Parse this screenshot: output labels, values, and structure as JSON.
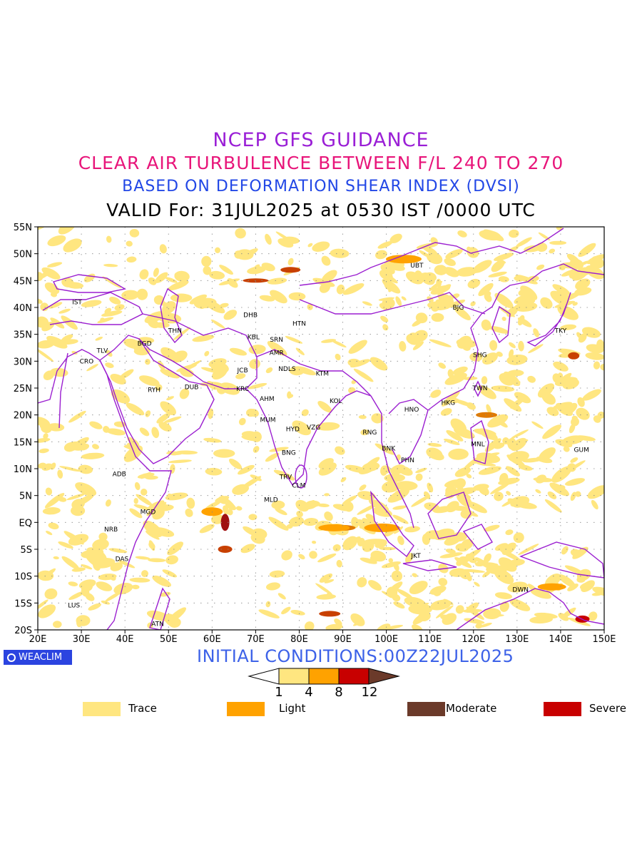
{
  "titles": {
    "line1": "NCEP GFS GUIDANCE",
    "line2": "CLEAR AIR TURBULENCE BETWEEN F/L 240 TO 270",
    "line3": "BASED ON DEFORMATION SHEAR INDEX (DVSI)",
    "line4": "VALID For: 31JUL2025 at 0530 IST /0000 UTC"
  },
  "map": {
    "lon_range": [
      20,
      150
    ],
    "lat_range": [
      -20,
      55
    ],
    "lon_ticks": [
      "20E",
      "30E",
      "40E",
      "50E",
      "60E",
      "70E",
      "80E",
      "90E",
      "100E",
      "110E",
      "120E",
      "130E",
      "140E",
      "150E"
    ],
    "lat_ticks": [
      "55N",
      "50N",
      "45N",
      "40N",
      "35N",
      "30N",
      "25N",
      "20N",
      "15N",
      "10N",
      "5N",
      "EQ",
      "5S",
      "10S",
      "15S",
      "20S"
    ],
    "grid": "dotted",
    "stations": [
      {
        "code": "UBT",
        "lon": 107,
        "lat": 47.8
      },
      {
        "code": "IST",
        "lon": 29,
        "lat": 41
      },
      {
        "code": "BJG",
        "lon": 116.5,
        "lat": 40
      },
      {
        "code": "DHB",
        "lon": 68.8,
        "lat": 38.6
      },
      {
        "code": "HTN",
        "lon": 80,
        "lat": 37
      },
      {
        "code": "THN",
        "lon": 51.5,
        "lat": 35.7
      },
      {
        "code": "KBL",
        "lon": 69.5,
        "lat": 34.5
      },
      {
        "code": "SRN",
        "lon": 74.8,
        "lat": 34
      },
      {
        "code": "TKY",
        "lon": 140,
        "lat": 35.7
      },
      {
        "code": "BGD",
        "lon": 44.5,
        "lat": 33.3
      },
      {
        "code": "TLV",
        "lon": 34.8,
        "lat": 32
      },
      {
        "code": "AMR",
        "lon": 74.8,
        "lat": 31.6
      },
      {
        "code": "SHG",
        "lon": 121.5,
        "lat": 31.2
      },
      {
        "code": "CRO",
        "lon": 31.2,
        "lat": 30
      },
      {
        "code": "JCB",
        "lon": 67,
        "lat": 28.3
      },
      {
        "code": "NDLS",
        "lon": 77.2,
        "lat": 28.6
      },
      {
        "code": "KTM",
        "lon": 85.3,
        "lat": 27.7
      },
      {
        "code": "RYH",
        "lon": 46.7,
        "lat": 24.7
      },
      {
        "code": "DUB",
        "lon": 55.3,
        "lat": 25.2
      },
      {
        "code": "KRC",
        "lon": 67,
        "lat": 24.9
      },
      {
        "code": "TWN",
        "lon": 121.5,
        "lat": 25
      },
      {
        "code": "AHM",
        "lon": 72.6,
        "lat": 23
      },
      {
        "code": "KOL",
        "lon": 88.4,
        "lat": 22.6
      },
      {
        "code": "HKG",
        "lon": 114.2,
        "lat": 22.3
      },
      {
        "code": "HNO",
        "lon": 105.8,
        "lat": 21
      },
      {
        "code": "MUM",
        "lon": 72.8,
        "lat": 19.1
      },
      {
        "code": "HYD",
        "lon": 78.5,
        "lat": 17.4
      },
      {
        "code": "VZG",
        "lon": 83.3,
        "lat": 17.7
      },
      {
        "code": "RNG",
        "lon": 96.2,
        "lat": 16.8
      },
      {
        "code": "MNL",
        "lon": 121,
        "lat": 14.6
      },
      {
        "code": "BNK",
        "lon": 100.5,
        "lat": 13.8
      },
      {
        "code": "GUM",
        "lon": 144.8,
        "lat": 13.5
      },
      {
        "code": "BNG",
        "lon": 77.6,
        "lat": 13
      },
      {
        "code": "PHN",
        "lon": 104.9,
        "lat": 11.6
      },
      {
        "code": "ADB",
        "lon": 38.7,
        "lat": 9
      },
      {
        "code": "TRV",
        "lon": 76.9,
        "lat": 8.5
      },
      {
        "code": "CLM",
        "lon": 79.9,
        "lat": 6.9
      },
      {
        "code": "MLD",
        "lon": 73.5,
        "lat": 4.2
      },
      {
        "code": "MGD",
        "lon": 45.3,
        "lat": 2
      },
      {
        "code": "NRB",
        "lon": 36.8,
        "lat": -1.3
      },
      {
        "code": "DAS",
        "lon": 39.3,
        "lat": -6.8
      },
      {
        "code": "JKT",
        "lon": 106.8,
        "lat": -6.2
      },
      {
        "code": "DWN",
        "lon": 130.8,
        "lat": -12.5
      },
      {
        "code": "LUS",
        "lon": 28.3,
        "lat": -15.4
      },
      {
        "code": "ATN",
        "lon": 47.5,
        "lat": -18.9
      }
    ]
  },
  "brand": {
    "label": "WEACLIM",
    "icon": "ring-icon"
  },
  "initial_conditions": "INITIAL CONDITIONS:00Z22JUL2025",
  "colorbar": {
    "labels": [
      "1",
      "4",
      "8",
      "12"
    ],
    "colors": [
      "#ffffff",
      "#ffe680",
      "#ffa200",
      "#c80000",
      "#6b3a2a"
    ]
  },
  "legend": [
    {
      "label": "Trace",
      "color": "#ffe680"
    },
    {
      "label": "Light",
      "color": "#ffa200"
    },
    {
      "label": "Moderate",
      "color": "#6b3a2a"
    },
    {
      "label": "Severe",
      "color": "#c80000"
    }
  ]
}
